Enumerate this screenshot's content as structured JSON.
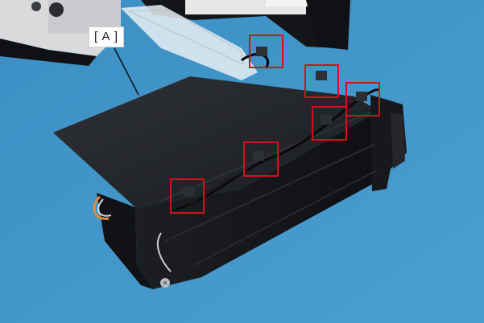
{
  "figure": {
    "callout_label": "[ A ]",
    "highlight_color": "#d1121b",
    "highlight_count": 6,
    "background_color": "#3f94c9"
  }
}
